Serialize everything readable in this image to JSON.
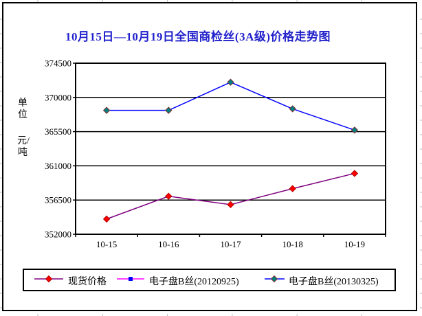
{
  "window": {
    "background": "#FFFFFF",
    "border_color": "#000000",
    "spreadsheet_gridline_color": "#BBBBBB"
  },
  "chart_data": {
    "type": "line",
    "title": "10月15日—10月19日全国商检丝(3A级)价格走势图",
    "title_color": "#2222CC",
    "y_axis_unit_lines": [
      "单位",
      "元/吨"
    ],
    "categories": [
      "10-15",
      "10-16",
      "10-17",
      "10-18",
      "10-19"
    ],
    "y_ticks": [
      374500,
      370000,
      365500,
      361000,
      356500,
      352000
    ],
    "ylim": [
      352000,
      374500
    ],
    "grid": true,
    "legend_position": "bottom",
    "series": [
      {
        "name": "现货价格",
        "values": [
          354000,
          357000,
          355900,
          358000,
          360000
        ],
        "line_color": "#800080",
        "marker": "diamond",
        "marker_color": "#FF0000",
        "marker_edge": "#B00000"
      },
      {
        "name": "电子盘B丝(20120925)",
        "values": [],
        "line_color": "#FF00FF",
        "marker": "square",
        "marker_color": "#0000FF",
        "marker_edge": "#0000FF"
      },
      {
        "name": "电子盘B丝(20130325)",
        "values": [
          368300,
          368300,
          372000,
          368500,
          365700
        ],
        "line_color": "#0000FF",
        "marker": "diamond",
        "marker_color": "#008080",
        "marker_edge": "#803030"
      }
    ]
  }
}
